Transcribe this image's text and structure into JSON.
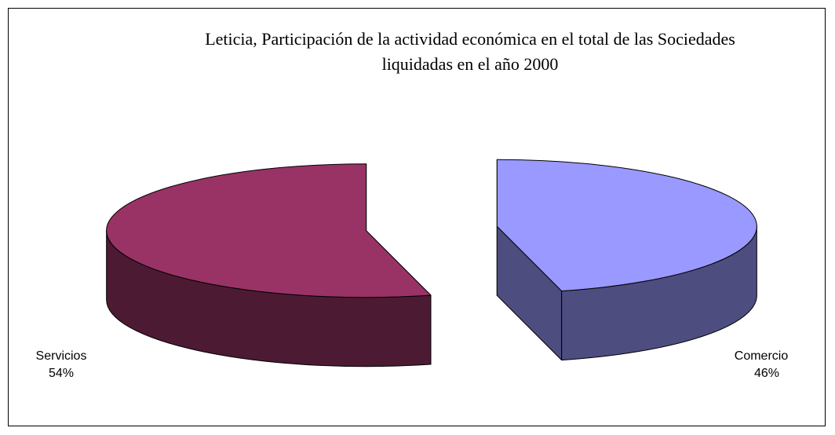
{
  "chart_data": {
    "type": "pie3d",
    "title": "Leticia, Participación de la actividad económica en el total de las Sociedades liquidadas en el año 2000",
    "categories": [
      "Comercio",
      "Servicios"
    ],
    "values": [
      46,
      54
    ],
    "value_labels": [
      "46%",
      "54%"
    ],
    "colors": [
      "#9999ff",
      "#993366"
    ],
    "side_colors": [
      "#4d4d80",
      "#4d1a33"
    ]
  }
}
